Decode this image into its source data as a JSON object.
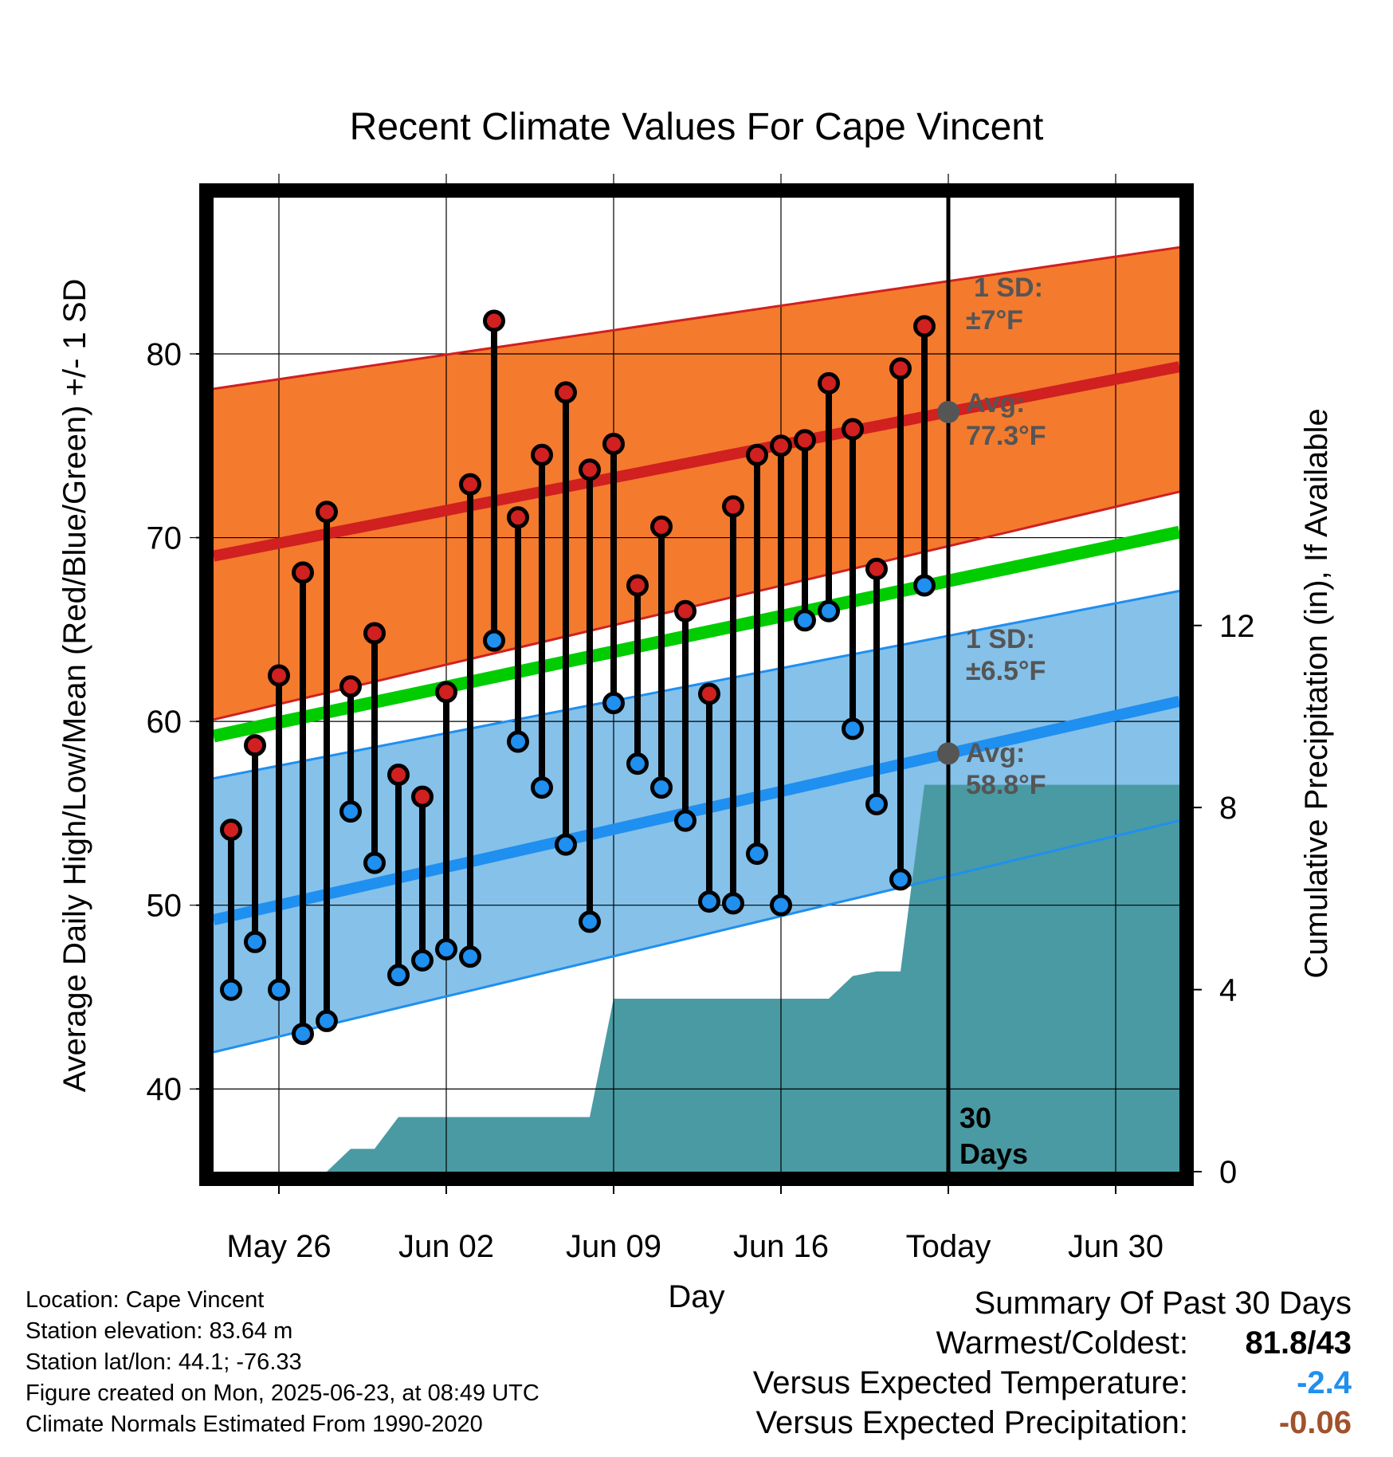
{
  "chart_data": {
    "type": "line",
    "title": "Recent Climate Values For Cape Vincent",
    "xlabel": "Day",
    "ylabel": "Average Daily High/Low/Mean (Red/Blue/Green) +/- 1 SD",
    "y2label": "Cumulative Precipitation (in), If Available",
    "x_tick_labels": [
      "May 26",
      "Jun 02",
      "Jun 09",
      "Jun 16",
      "Today",
      "Jun 30"
    ],
    "y_ticks": [
      "40",
      "50",
      "60",
      "70",
      "80"
    ],
    "y2_ticks": [
      "0",
      "4",
      "8",
      "12"
    ],
    "ylim": [
      35.5,
      88.5
    ],
    "y2lim": [
      0,
      21.4
    ],
    "grid": true,
    "days": [
      "May 24",
      "May 25",
      "May 26",
      "May 27",
      "May 28",
      "May 29",
      "May 30",
      "May 31",
      "Jun 01",
      "Jun 02",
      "Jun 03",
      "Jun 04",
      "Jun 05",
      "Jun 06",
      "Jun 07",
      "Jun 08",
      "Jun 09",
      "Jun 10",
      "Jun 11",
      "Jun 12",
      "Jun 13",
      "Jun 14",
      "Jun 15",
      "Jun 16",
      "Jun 17",
      "Jun 18",
      "Jun 19",
      "Jun 20",
      "Jun 21",
      "Jun 22"
    ],
    "daily_high": [
      54.1,
      58.7,
      62.5,
      68.1,
      71.4,
      61.9,
      64.8,
      57.1,
      55.9,
      61.6,
      72.9,
      81.8,
      71.1,
      74.5,
      77.9,
      73.7,
      75.1,
      67.4,
      70.6,
      66.0,
      61.5,
      71.7,
      74.5,
      75.0,
      75.3,
      78.4,
      75.9,
      68.3,
      79.2,
      81.5
    ],
    "daily_low": [
      45.4,
      48.0,
      45.4,
      43.0,
      43.7,
      55.1,
      52.3,
      46.2,
      47.0,
      47.6,
      47.2,
      64.4,
      58.9,
      56.4,
      53.3,
      49.1,
      61.0,
      57.7,
      56.4,
      54.6,
      50.2,
      50.1,
      52.8,
      50.0,
      65.5,
      66.0,
      59.6,
      55.5,
      51.4,
      67.4
    ],
    "normal_high": [
      69.0,
      79.3
    ],
    "normal_high_sd_upper": [
      78.1,
      85.8
    ],
    "normal_high_sd_lower": [
      60.1,
      72.5
    ],
    "normal_low": [
      49.2,
      61.1
    ],
    "normal_low_sd_upper": [
      56.9,
      67.1
    ],
    "normal_low_sd_lower": [
      42.0,
      54.6
    ],
    "normal_mean": [
      59.2,
      70.3
    ],
    "cumulative_precip": [
      0,
      0,
      0,
      0,
      0,
      0.5,
      0.5,
      1.2,
      1.2,
      1.2,
      1.2,
      1.2,
      1.2,
      1.2,
      1.2,
      1.2,
      3.8,
      3.8,
      3.8,
      3.8,
      3.8,
      3.8,
      3.8,
      3.8,
      3.8,
      3.8,
      4.3,
      4.4,
      4.4,
      8.5,
      8.5,
      8.5,
      8.5,
      8.5,
      8.5,
      8.5,
      8.5,
      8.5,
      8.5
    ],
    "annotations": {
      "high_sd_title": "1 SD:",
      "high_sd_value": "±7°F",
      "high_avg_title": "Avg:",
      "high_avg_value": "77.3°F",
      "low_sd_title": "1 SD:",
      "low_sd_value": "±6.5°F",
      "low_avg_title": "Avg:",
      "low_avg_value": "58.8°F",
      "days_count": "30",
      "days_label": "Days"
    },
    "colors": {
      "high_band": "#f47a2e",
      "high_line": "#d02020",
      "low_band": "#85c1e9",
      "low_line": "#1f8ff0",
      "mean_line": "#00cc00",
      "precip": "#4a9aa3",
      "marker_high": "#d02020",
      "marker_low": "#1f8ff0",
      "avg_dot": "#555555",
      "annotation_text": "#555555"
    }
  },
  "meta": {
    "location": "Location: Cape Vincent",
    "elevation": "Station elevation: 83.64 m",
    "latlon": "Station lat/lon: 44.1; -76.33",
    "created": "Figure created on Mon, 2025-06-23, at 08:49 UTC",
    "normals": "Climate Normals Estimated From 1990-2020"
  },
  "summary": {
    "title": "Summary Of Past 30 Days",
    "warmest_label": "Warmest/Coldest:",
    "warmest_value": "81.8/43",
    "temp_label": "Versus Expected Temperature:",
    "temp_value": "-2.4",
    "temp_color": "#1f8ff0",
    "precip_label": "Versus Expected Precipitation:",
    "precip_value": "-0.06",
    "precip_color": "#a0522d"
  }
}
